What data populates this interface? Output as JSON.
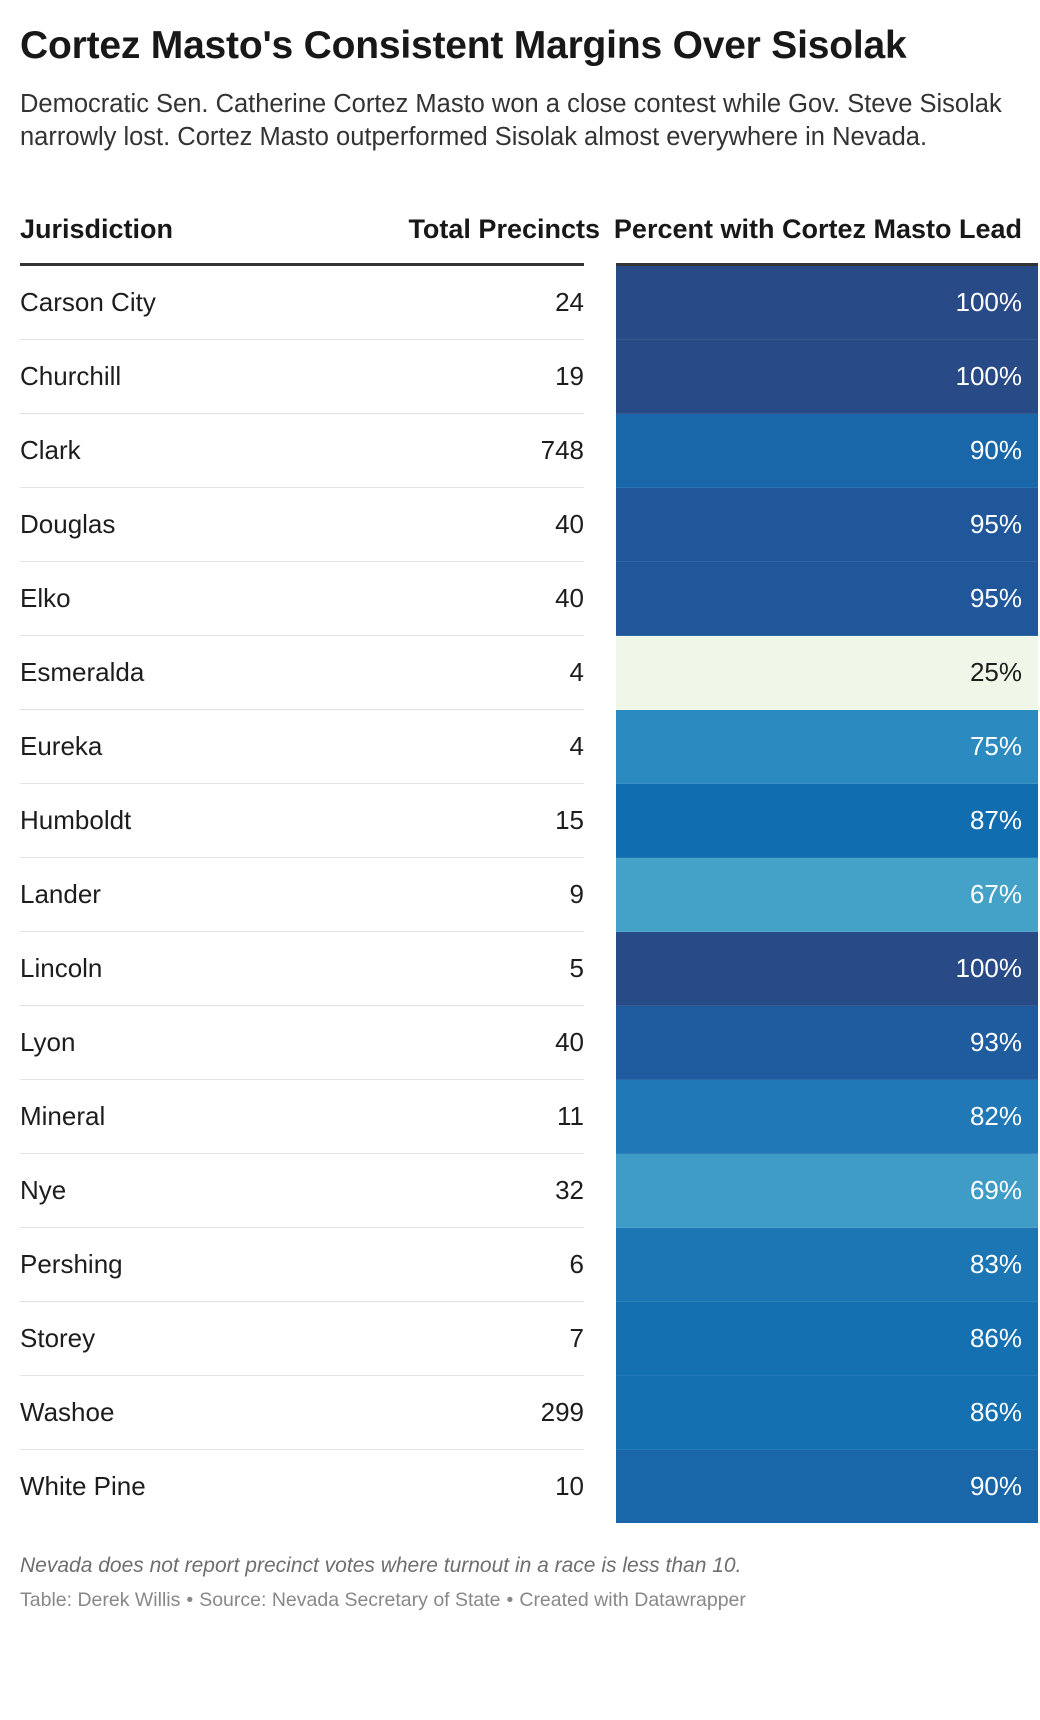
{
  "title": "Cortez Masto's Consistent Margins Over Sisolak",
  "subtitle": "Democratic Sen. Catherine Cortez Masto won a close contest while Gov. Steve Sisolak narrowly lost. Cortez Masto outperformed Sisolak almost everywhere in Nevada.",
  "columns": {
    "jurisdiction": "Jurisdiction",
    "precincts": "Total Precincts",
    "percent": "Percent with Cortez Masto Lead"
  },
  "footer": {
    "note": "Nevada does not report precinct votes where turnout in a race is less than 10.",
    "credit_table": "Table: Derek Willis",
    "separator": "•",
    "credit_source": "Source: Nevada Secretary of State",
    "credit_tool": "Created with Datawrapper"
  },
  "colors": {
    "scale_low": "#eff8e8",
    "scale_high": "#274a87",
    "header_rule": "#333333"
  },
  "chart_data": {
    "type": "table",
    "title": "Cortez Masto's Consistent Margins Over Sisolak",
    "columns": [
      "Jurisdiction",
      "Total Precincts",
      "Percent with Cortez Masto Lead"
    ],
    "rows": [
      {
        "jurisdiction": "Carson City",
        "precincts": "24",
        "percent": "100%",
        "value": 100,
        "color": "#284a87"
      },
      {
        "jurisdiction": "Churchill",
        "precincts": "19",
        "percent": "100%",
        "value": 100,
        "color": "#284a87"
      },
      {
        "jurisdiction": "Clark",
        "precincts": "748",
        "percent": "90%",
        "value": 90,
        "color": "#1966a8"
      },
      {
        "jurisdiction": "Douglas",
        "precincts": "40",
        "percent": "95%",
        "value": 95,
        "color": "#20579a"
      },
      {
        "jurisdiction": "Elko",
        "precincts": "40",
        "percent": "95%",
        "value": 95,
        "color": "#20579a"
      },
      {
        "jurisdiction": "Esmeralda",
        "precincts": "4",
        "percent": "25%",
        "value": 25,
        "color": "#eff8e8"
      },
      {
        "jurisdiction": "Eureka",
        "precincts": "4",
        "percent": "75%",
        "value": 75,
        "color": "#2b8bc0"
      },
      {
        "jurisdiction": "Humboldt",
        "precincts": "15",
        "percent": "87%",
        "value": 87,
        "color": "#0f6db0"
      },
      {
        "jurisdiction": "Lander",
        "precincts": "9",
        "percent": "67%",
        "value": 67,
        "color": "#44a1c8"
      },
      {
        "jurisdiction": "Lincoln",
        "precincts": "5",
        "percent": "100%",
        "value": 100,
        "color": "#284a87"
      },
      {
        "jurisdiction": "Lyon",
        "precincts": "40",
        "percent": "93%",
        "value": 93,
        "color": "#1e5c9f"
      },
      {
        "jurisdiction": "Mineral",
        "precincts": "11",
        "percent": "82%",
        "value": 82,
        "color": "#2078b6"
      },
      {
        "jurisdiction": "Nye",
        "precincts": "32",
        "percent": "69%",
        "value": 69,
        "color": "#3e9cc6"
      },
      {
        "jurisdiction": "Pershing",
        "precincts": "6",
        "percent": "83%",
        "value": 83,
        "color": "#1d76b4"
      },
      {
        "jurisdiction": "Storey",
        "precincts": "7",
        "percent": "86%",
        "value": 86,
        "color": "#1470b1"
      },
      {
        "jurisdiction": "Washoe",
        "precincts": "299",
        "percent": "86%",
        "value": 86,
        "color": "#1470b1"
      },
      {
        "jurisdiction": "White Pine",
        "precincts": "10",
        "percent": "90%",
        "value": 90,
        "color": "#1966a8"
      }
    ]
  }
}
